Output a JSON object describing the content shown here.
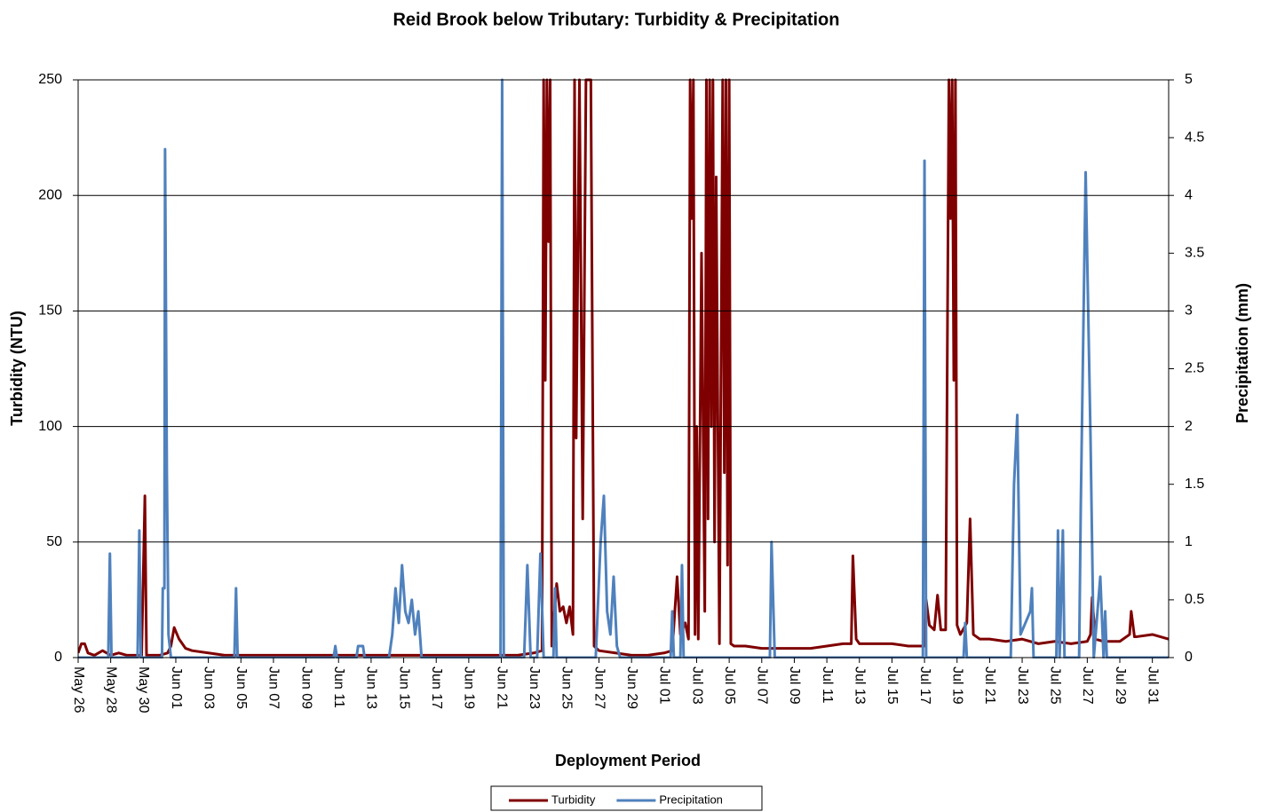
{
  "chart_data": {
    "type": "line",
    "title": "Reid Brook below Tributary: Turbidity & Precipitation",
    "x_label": "Deployment Period",
    "y_label": "Turbidity (NTU)",
    "y2_label": "Precipitation (mm)",
    "xlim": [
      0,
      67
    ],
    "xticks": [
      {
        "value": 0,
        "label": "May 26"
      },
      {
        "value": 2,
        "label": "May 28"
      },
      {
        "value": 4,
        "label": "May 30"
      },
      {
        "value": 6,
        "label": "Jun 01"
      },
      {
        "value": 8,
        "label": "Jun 03"
      },
      {
        "value": 10,
        "label": "Jun 05"
      },
      {
        "value": 12,
        "label": "Jun 07"
      },
      {
        "value": 14,
        "label": "Jun 09"
      },
      {
        "value": 16,
        "label": "Jun 11"
      },
      {
        "value": 18,
        "label": "Jun 13"
      },
      {
        "value": 20,
        "label": "Jun 15"
      },
      {
        "value": 22,
        "label": "Jun 17"
      },
      {
        "value": 24,
        "label": "Jun 19"
      },
      {
        "value": 26,
        "label": "Jun 21"
      },
      {
        "value": 28,
        "label": "Jun 23"
      },
      {
        "value": 30,
        "label": "Jun 25"
      },
      {
        "value": 32,
        "label": "Jun 27"
      },
      {
        "value": 34,
        "label": "Jun 29"
      },
      {
        "value": 36,
        "label": "Jul 01"
      },
      {
        "value": 38,
        "label": "Jul 03"
      },
      {
        "value": 40,
        "label": "Jul 05"
      },
      {
        "value": 42,
        "label": "Jul 07"
      },
      {
        "value": 44,
        "label": "Jul 09"
      },
      {
        "value": 46,
        "label": "Jul 11"
      },
      {
        "value": 48,
        "label": "Jul 13"
      },
      {
        "value": 50,
        "label": "Jul 15"
      },
      {
        "value": 52,
        "label": "Jul 17"
      },
      {
        "value": 54,
        "label": "Jul 19"
      },
      {
        "value": 56,
        "label": "Jul 21"
      },
      {
        "value": 58,
        "label": "Jul 23"
      },
      {
        "value": 60,
        "label": "Jul 25"
      },
      {
        "value": 62,
        "label": "Jul 27"
      },
      {
        "value": 64,
        "label": "Jul 29"
      },
      {
        "value": 66,
        "label": "Jul 31"
      }
    ],
    "ylim": [
      0,
      250
    ],
    "yticks": [
      0,
      50,
      100,
      150,
      200,
      250
    ],
    "y2lim": [
      0,
      5
    ],
    "y2ticks": [
      0,
      0.5,
      1,
      1.5,
      2,
      2.5,
      3,
      3.5,
      4,
      4.5,
      5
    ],
    "grid": true,
    "legend": "bottom",
    "series": [
      {
        "name": "Turbidity",
        "color": "#7f0000",
        "x": [
          0,
          0.2,
          0.4,
          0.6,
          1,
          1.5,
          2,
          2.5,
          3,
          3.5,
          3.9,
          4.1,
          4.2,
          4.4,
          5,
          5.5,
          5.7,
          5.9,
          6.2,
          6.6,
          7,
          8,
          9,
          10,
          12,
          14,
          16,
          18,
          20,
          22,
          24,
          26,
          27,
          28,
          28.5,
          28.6,
          28.7,
          28.8,
          28.9,
          29.0,
          29.1,
          29.4,
          29.6,
          29.8,
          30,
          30.2,
          30.4,
          30.5,
          30.6,
          30.8,
          31,
          31.2,
          31.5,
          31.7,
          32,
          33,
          34,
          35,
          36,
          36.5,
          36.8,
          37.0,
          37.3,
          37.5,
          37.6,
          37.7,
          37.8,
          37.9,
          38.0,
          38.1,
          38.3,
          38.5,
          38.6,
          38.7,
          38.8,
          38.9,
          39.0,
          39.1,
          39.2,
          39.4,
          39.6,
          39.7,
          39.8,
          39.9,
          40.0,
          40.1,
          40.3,
          41,
          42,
          43,
          44,
          45,
          46,
          47,
          47.5,
          47.6,
          47.8,
          48,
          49,
          50,
          51,
          52,
          52.1,
          52.3,
          52.6,
          52.8,
          53,
          53.3,
          53.5,
          53.6,
          53.7,
          53.8,
          53.9,
          54.0,
          54.2,
          54.6,
          54.8,
          55.0,
          55.4,
          56,
          57,
          58,
          59,
          60,
          61,
          62,
          62.2,
          62.3,
          62.5,
          63,
          64,
          64.6,
          64.7,
          64.9,
          65,
          66,
          67
        ],
        "values": [
          2,
          6,
          6,
          2,
          1,
          3,
          1,
          2,
          1,
          1,
          1,
          70,
          1,
          1,
          1,
          2,
          5,
          13,
          8,
          4,
          3,
          2,
          1,
          1,
          1,
          1,
          1,
          1,
          1,
          1,
          1,
          1,
          1,
          2,
          3,
          250,
          120,
          250,
          180,
          250,
          5,
          32,
          20,
          22,
          15,
          22,
          10,
          250,
          95,
          250,
          60,
          250,
          250,
          5,
          3,
          2,
          1,
          1,
          2,
          3,
          35,
          10,
          15,
          8,
          250,
          190,
          250,
          10,
          100,
          8,
          175,
          20,
          250,
          60,
          250,
          100,
          250,
          50,
          208,
          6,
          250,
          80,
          250,
          40,
          250,
          6,
          5,
          5,
          4,
          4,
          4,
          4,
          5,
          6,
          6,
          44,
          8,
          6,
          6,
          6,
          5,
          5,
          25,
          14,
          12,
          27,
          12,
          12,
          250,
          190,
          250,
          120,
          250,
          14,
          10,
          15,
          60,
          10,
          8,
          8,
          7,
          8,
          6,
          7,
          6,
          7,
          10,
          26,
          8,
          7,
          7,
          10,
          20,
          9,
          9,
          10,
          8
        ]
      },
      {
        "name": "Precipitation",
        "color": "#4f81bd",
        "axis": "y2",
        "x": [
          0,
          1.85,
          1.95,
          2.05,
          3.65,
          3.76,
          3.85,
          5.15,
          5.2,
          5.3,
          5.34,
          5.45,
          5.55,
          5.7,
          9.6,
          9.7,
          9.8,
          15.7,
          15.8,
          15.9,
          17.1,
          17.2,
          17.5,
          17.6,
          19.1,
          19.3,
          19.5,
          19.7,
          19.9,
          20.1,
          20.3,
          20.5,
          20.7,
          20.9,
          21.1,
          25.95,
          26.05,
          26.15,
          27.4,
          27.6,
          27.8,
          28.2,
          28.4,
          28.6,
          29.2,
          29.3,
          29.4,
          31.8,
          32.1,
          32.3,
          32.5,
          32.7,
          32.9,
          33.1,
          33.3,
          36.4,
          36.5,
          36.6,
          37.0,
          37.1,
          37.2,
          42.5,
          42.6,
          42.7,
          42.8,
          51.9,
          52.0,
          52.1,
          54.4,
          54.5,
          54.6,
          57.3,
          57.5,
          57.7,
          57.9,
          58.5,
          58.6,
          58.7,
          60.1,
          60.2,
          60.3,
          60.5,
          60.6,
          61.5,
          61.6,
          61.9,
          62.2,
          62.4,
          62.8,
          63.0,
          63.1,
          63.2,
          67
        ],
        "values": [
          0,
          0,
          0.9,
          0,
          0,
          1.1,
          0,
          0,
          0.6,
          0.6,
          4.4,
          1.6,
          0.2,
          0,
          0,
          0.6,
          0,
          0,
          0.1,
          0,
          0,
          0.1,
          0.1,
          0,
          0,
          0.2,
          0.6,
          0.3,
          0.8,
          0.4,
          0.3,
          0.5,
          0.2,
          0.4,
          0,
          0,
          5,
          0,
          0,
          0.8,
          0,
          0,
          0.9,
          0,
          0,
          0.6,
          0,
          0,
          1.0,
          1.4,
          0.4,
          0.2,
          0.7,
          0.1,
          0,
          0,
          0.4,
          0,
          0,
          0.8,
          0,
          0,
          1.0,
          0.5,
          0,
          0,
          4.3,
          0,
          0,
          0.3,
          0,
          0,
          1.5,
          2.1,
          0.2,
          0.4,
          0.6,
          0,
          0,
          1.1,
          0,
          1.1,
          0,
          0,
          1.3,
          4.2,
          1.9,
          0,
          0.7,
          0,
          0.4,
          0,
          0
        ]
      }
    ]
  }
}
